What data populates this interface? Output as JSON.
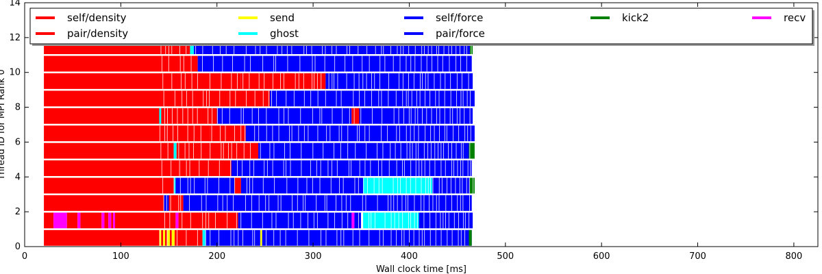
{
  "chart_data": {
    "type": "bar",
    "subtype": "horizontal-task-timeline",
    "xlabel": "Wall clock time [ms]",
    "ylabel": "Thread ID for MPI Rank 0",
    "xlim": [
      0,
      825
    ],
    "ylim": [
      0,
      14
    ],
    "xticks": [
      0,
      100,
      200,
      300,
      400,
      500,
      600,
      700,
      800
    ],
    "yticks": [
      0,
      2,
      4,
      6,
      8,
      10,
      12,
      14
    ],
    "grid": false,
    "legend_position": "top, inside, 5 columns",
    "legend": [
      {
        "label": "self/density",
        "color": "#ff0000"
      },
      {
        "label": "pair/density",
        "color": "#ff0000"
      },
      {
        "label": "send",
        "color": "#ffff00"
      },
      {
        "label": "ghost",
        "color": "#00ffff"
      },
      {
        "label": "self/force",
        "color": "#0000ff"
      },
      {
        "label": "pair/force",
        "color": "#0000ff"
      },
      {
        "label": "kick2",
        "color": "#008000"
      },
      {
        "label": "recv",
        "color": "#ff00ff"
      }
    ],
    "threads": [
      {
        "thread": 0,
        "segments": [
          {
            "task": "self/density",
            "start": 20,
            "end": 140
          },
          {
            "task": "send",
            "start": 140,
            "end": 142
          },
          {
            "task": "self/density",
            "start": 142,
            "end": 144
          },
          {
            "task": "send",
            "start": 144,
            "end": 146
          },
          {
            "task": "self/density",
            "start": 146,
            "end": 148
          },
          {
            "task": "send",
            "start": 148,
            "end": 151
          },
          {
            "task": "self/density",
            "start": 151,
            "end": 153
          },
          {
            "task": "send",
            "start": 153,
            "end": 156
          },
          {
            "task": "pair/density",
            "start": 156,
            "end": 185
          },
          {
            "task": "ghost",
            "start": 185,
            "end": 188
          },
          {
            "task": "pair/force",
            "start": 188,
            "end": 245
          },
          {
            "task": "send",
            "start": 245,
            "end": 247
          },
          {
            "task": "pair/force",
            "start": 247,
            "end": 465
          },
          {
            "task": "kick2",
            "start": 462,
            "end": 465
          }
        ]
      },
      {
        "thread": 1,
        "segments": [
          {
            "task": "self/density",
            "start": 20,
            "end": 30
          },
          {
            "task": "recv",
            "start": 30,
            "end": 44
          },
          {
            "task": "self/density",
            "start": 44,
            "end": 55
          },
          {
            "task": "recv",
            "start": 55,
            "end": 58
          },
          {
            "task": "self/density",
            "start": 58,
            "end": 80
          },
          {
            "task": "recv",
            "start": 80,
            "end": 83
          },
          {
            "task": "self/density",
            "start": 83,
            "end": 87
          },
          {
            "task": "recv",
            "start": 87,
            "end": 90
          },
          {
            "task": "self/density",
            "start": 90,
            "end": 92
          },
          {
            "task": "recv",
            "start": 92,
            "end": 94
          },
          {
            "task": "self/density",
            "start": 94,
            "end": 157
          },
          {
            "task": "recv",
            "start": 157,
            "end": 160
          },
          {
            "task": "pair/density",
            "start": 160,
            "end": 222
          },
          {
            "task": "pair/force",
            "start": 222,
            "end": 350
          },
          {
            "task": "recv",
            "start": 340,
            "end": 343
          },
          {
            "task": "ghost",
            "start": 352,
            "end": 410
          },
          {
            "task": "pair/force",
            "start": 410,
            "end": 466
          }
        ]
      },
      {
        "thread": 2,
        "segments": [
          {
            "task": "self/density",
            "start": 20,
            "end": 145
          },
          {
            "task": "pair/force",
            "start": 145,
            "end": 150
          },
          {
            "task": "pair/density",
            "start": 150,
            "end": 165
          },
          {
            "task": "pair/force",
            "start": 165,
            "end": 465
          }
        ]
      },
      {
        "thread": 3,
        "segments": [
          {
            "task": "self/density",
            "start": 20,
            "end": 155
          },
          {
            "task": "ghost",
            "start": 155,
            "end": 157
          },
          {
            "task": "pair/force",
            "start": 157,
            "end": 218
          },
          {
            "task": "pair/density",
            "start": 218,
            "end": 225
          },
          {
            "task": "pair/force",
            "start": 225,
            "end": 352
          },
          {
            "task": "ghost",
            "start": 352,
            "end": 424
          },
          {
            "task": "pair/force",
            "start": 424,
            "end": 463
          },
          {
            "task": "kick2",
            "start": 463,
            "end": 468
          }
        ]
      },
      {
        "thread": 4,
        "segments": [
          {
            "task": "self/density",
            "start": 20,
            "end": 162
          },
          {
            "task": "pair/density",
            "start": 162,
            "end": 215
          },
          {
            "task": "pair/force",
            "start": 215,
            "end": 465
          }
        ]
      },
      {
        "thread": 5,
        "segments": [
          {
            "task": "self/density",
            "start": 20,
            "end": 155
          },
          {
            "task": "ghost",
            "start": 155,
            "end": 158
          },
          {
            "task": "pair/density",
            "start": 158,
            "end": 243
          },
          {
            "task": "pair/force",
            "start": 243,
            "end": 462
          },
          {
            "task": "kick2",
            "start": 462,
            "end": 468
          }
        ]
      },
      {
        "thread": 6,
        "segments": [
          {
            "task": "self/density",
            "start": 20,
            "end": 193
          },
          {
            "task": "pair/density",
            "start": 193,
            "end": 230
          },
          {
            "task": "pair/force",
            "start": 230,
            "end": 468
          }
        ]
      },
      {
        "thread": 7,
        "segments": [
          {
            "task": "self/density",
            "start": 20,
            "end": 140
          },
          {
            "task": "ghost",
            "start": 140,
            "end": 142
          },
          {
            "task": "pair/density",
            "start": 142,
            "end": 200
          },
          {
            "task": "pair/force",
            "start": 200,
            "end": 340
          },
          {
            "task": "pair/density",
            "start": 340,
            "end": 348
          },
          {
            "task": "pair/force",
            "start": 348,
            "end": 466
          }
        ]
      },
      {
        "thread": 8,
        "segments": [
          {
            "task": "self/density",
            "start": 20,
            "end": 255
          },
          {
            "task": "pair/force",
            "start": 255,
            "end": 468
          }
        ]
      },
      {
        "thread": 9,
        "segments": [
          {
            "task": "self/density",
            "start": 20,
            "end": 225
          },
          {
            "task": "pair/density",
            "start": 225,
            "end": 313
          },
          {
            "task": "pair/force",
            "start": 313,
            "end": 466
          }
        ]
      },
      {
        "thread": 10,
        "segments": [
          {
            "task": "self/density",
            "start": 20,
            "end": 140
          },
          {
            "task": "pair/density",
            "start": 140,
            "end": 180
          },
          {
            "task": "pair/force",
            "start": 180,
            "end": 465
          }
        ]
      },
      {
        "thread": 11,
        "segments": [
          {
            "task": "self/density",
            "start": 20,
            "end": 172
          },
          {
            "task": "ghost",
            "start": 172,
            "end": 176
          },
          {
            "task": "pair/force",
            "start": 176,
            "end": 465
          },
          {
            "task": "kick2",
            "start": 463,
            "end": 466
          }
        ]
      }
    ]
  }
}
